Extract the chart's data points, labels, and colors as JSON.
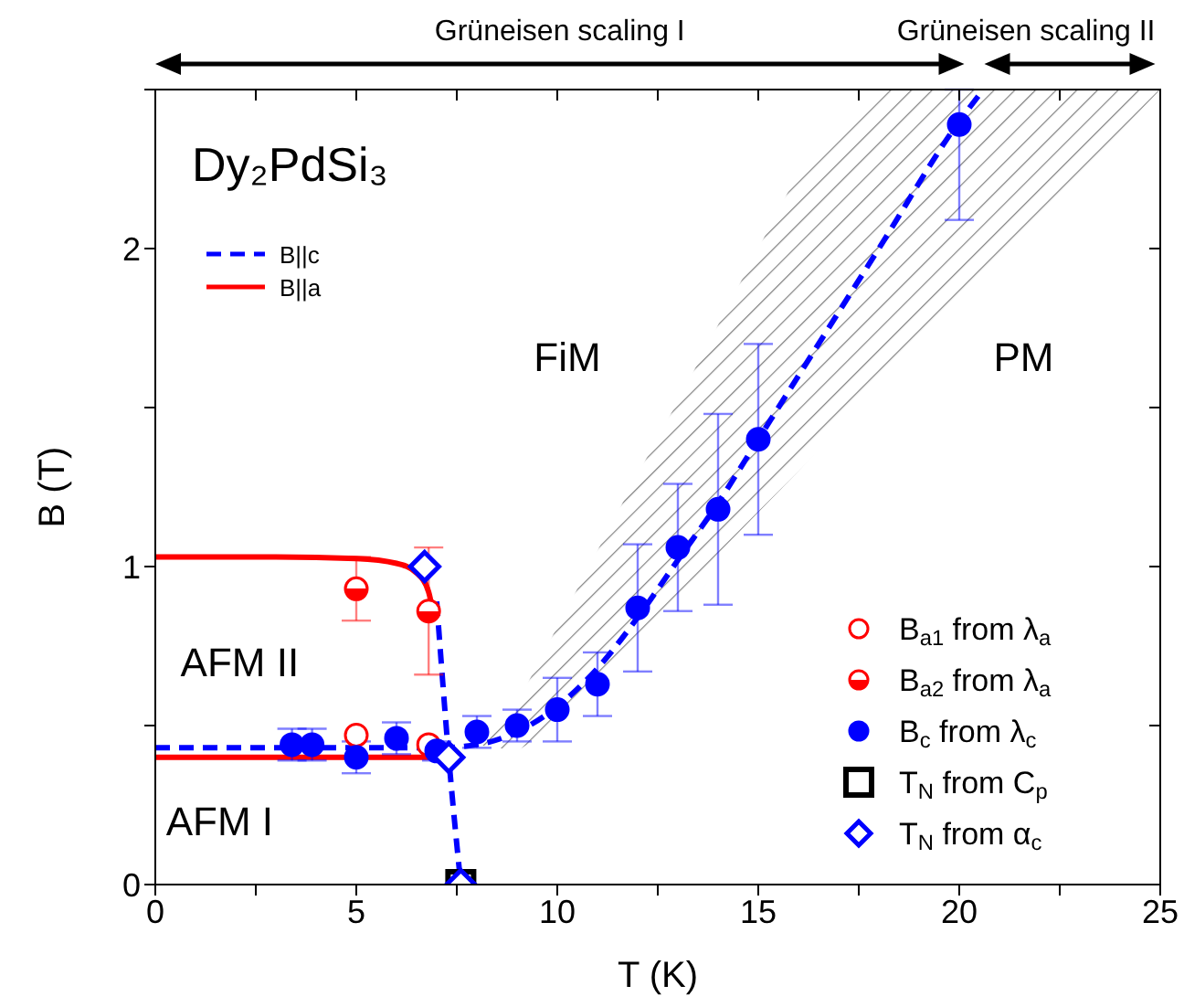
{
  "chart_data": {
    "type": "scatter",
    "title": "Dy₂PdSi₃",
    "xlabel": "T (K)",
    "ylabel": "B (T)",
    "xlim": [
      0,
      25
    ],
    "ylim": [
      0,
      2.5
    ],
    "xticks": [
      0,
      {
        "value": 2.5,
        "label": null
      },
      5,
      {
        "value": 7.5,
        "label": null
      },
      10,
      {
        "value": 12.5,
        "label": null
      },
      15,
      {
        "value": 17.5,
        "label": null
      },
      20,
      {
        "value": 22.5,
        "label": null
      },
      25
    ],
    "yticks": [
      0,
      {
        "value": 0.5,
        "label": null
      },
      1,
      {
        "value": 1.5,
        "label": null
      },
      2,
      {
        "value": 2.5,
        "label": null
      }
    ],
    "legend": "bottom right",
    "annotations": [
      "Grüneisen scaling I",
      "Grüneisen scaling II",
      "FiM",
      "PM",
      "AFM II",
      "AFM I"
    ],
    "series": [
      {
        "name": "B||c",
        "type": "line",
        "color": "#0000ff",
        "line_style": "dashed",
        "x": [
          0,
          7,
          8,
          9,
          10,
          11,
          12,
          13,
          14,
          15,
          16,
          18,
          20,
          20.6,
          22,
          25
        ],
        "values": [
          0.43,
          0.43,
          0.44,
          0.48,
          0.56,
          0.68,
          0.84,
          1.02,
          1.2,
          1.4,
          1.6,
          2.0,
          2.4,
          2.5,
          null,
          null
        ],
        "lower": [
          null,
          null,
          0.44,
          0.42,
          0.5,
          0.64,
          0.77,
          0.9,
          1.04,
          1.17,
          1.3,
          1.57,
          1.83,
          1.91,
          2.1,
          2.5
        ],
        "upper": [
          null,
          null,
          0.44,
          0.57,
          0.81,
          1.05,
          1.29,
          1.52,
          1.76,
          2.0,
          2.24,
          2.5,
          2.5,
          2.5,
          2.5,
          2.5
        ]
      },
      {
        "type": "line",
        "color": "#0000ff",
        "line_style": "dashed",
        "x": [
          7.0,
          7.3,
          7.6
        ],
        "values": [
          0.89,
          0.4,
          0
        ]
      },
      {
        "name": "B||a",
        "type": "line",
        "color": "#ff0000",
        "line_style": "solid",
        "x": [
          0,
          3,
          5,
          6,
          6.5,
          6.8,
          6.9
        ],
        "values": [
          1.03,
          1.03,
          1.025,
          1.01,
          0.98,
          0.92,
          0.86
        ]
      },
      {
        "type": "line",
        "color": "#ff0000",
        "line_style": "solid",
        "x": [
          0,
          7
        ],
        "values": [
          0.4,
          0.4
        ]
      },
      {
        "name": "B$_{a1}$ from λ$_{a}$",
        "color": "#ff0000",
        "marker": "circle",
        "x": [
          5,
          6.8
        ],
        "values": [
          0.47,
          0.44
        ]
      },
      {
        "name": "B$_{a2}$ from λ$_{a}$",
        "color": "#ff0000",
        "marker": "circle",
        "x": [
          5,
          6.8
        ],
        "values": [
          0.93,
          0.86
        ],
        "errors": [
          0.1,
          0.2
        ]
      },
      {
        "name": "B$_{c}$ from λ$_{c}$",
        "color": "#0000ff",
        "marker": "circle",
        "x": [
          3.4,
          3.9,
          5,
          6,
          7,
          8,
          9,
          10,
          11,
          12,
          13,
          14,
          15,
          20
        ],
        "values": [
          0.44,
          0.44,
          0.4,
          0.46,
          0.42,
          0.48,
          0.5,
          0.55,
          0.63,
          0.87,
          1.06,
          1.18,
          1.4,
          2.39
        ],
        "errors": [
          0.05,
          0.05,
          0.05,
          0.05,
          0.03,
          0.05,
          0.05,
          0.1,
          0.1,
          0.2,
          0.2,
          0.3,
          0.3,
          [
            2.09,
            2.5
          ]
        ]
      },
      {
        "name": "T$_{N}$ from C$_{p}$",
        "color": "#000000",
        "marker": "square",
        "x": [
          7.6
        ],
        "values": [
          0
        ]
      },
      {
        "name": "T$_{N}$ from α$_{c}$",
        "color": "#0000ff",
        "marker": "diamond",
        "x": [
          6.7,
          7.3,
          7.6
        ],
        "values": [
          1.0,
          0.4,
          0
        ]
      }
    ]
  }
}
